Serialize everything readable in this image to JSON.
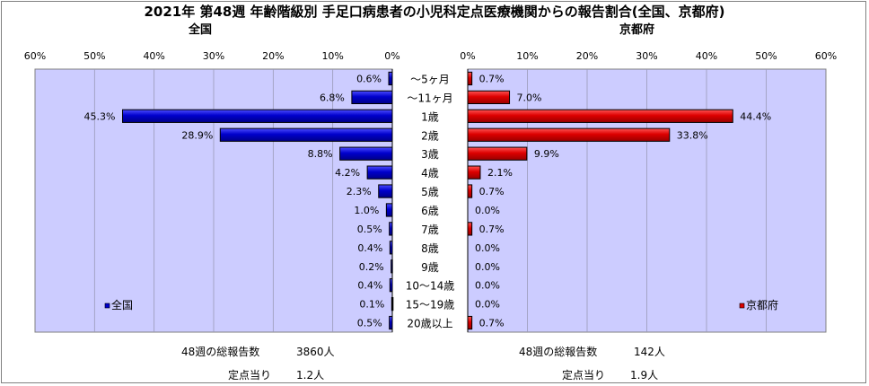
{
  "title": "2021年 第48週 年齢階級別 手足口病患者の小児科定点医療機関からの報告割合(全国、京都府)",
  "charts": {
    "left_title": "全国",
    "right_title": "京都府"
  },
  "colors": {
    "plot_bg": "#ccccff",
    "national_bar": "#0000cc",
    "kyoto_bar": "#dd0000",
    "grid": "#000000"
  },
  "chart_data": [
    {
      "type": "bar",
      "orientation": "horizontal",
      "direction": "right-to-left",
      "title": "全国",
      "categories": [
        "～5ヶ月",
        "～11ヶ月",
        "1歳",
        "2歳",
        "3歳",
        "4歳",
        "5歳",
        "6歳",
        "7歳",
        "8歳",
        "9歳",
        "10～14歳",
        "15～19歳",
        "20歳以上"
      ],
      "series": [
        {
          "name": "全国",
          "values": [
            0.6,
            6.8,
            45.3,
            28.9,
            8.8,
            4.2,
            2.3,
            1.0,
            0.5,
            0.4,
            0.2,
            0.4,
            0.1,
            0.5
          ],
          "labels": [
            "0.6%",
            "6.8%",
            "45.3%",
            "28.9%",
            "8.8%",
            "4.2%",
            "2.3%",
            "1.0%",
            "0.5%",
            "0.4%",
            "0.2%",
            "0.4%",
            "0.1%",
            "0.5%"
          ]
        }
      ],
      "xlim": [
        0,
        60
      ],
      "ticks": [
        "0%",
        "10%",
        "20%",
        "30%",
        "40%",
        "50%",
        "60%"
      ],
      "grid": true,
      "legend": "bottom-left"
    },
    {
      "type": "bar",
      "orientation": "horizontal",
      "direction": "left-to-right",
      "title": "京都府",
      "categories": [
        "～5ヶ月",
        "～11ヶ月",
        "1歳",
        "2歳",
        "3歳",
        "4歳",
        "5歳",
        "6歳",
        "7歳",
        "8歳",
        "9歳",
        "10～14歳",
        "15～19歳",
        "20歳以上"
      ],
      "series": [
        {
          "name": "京都府",
          "values": [
            0.7,
            7.0,
            44.4,
            33.8,
            9.9,
            2.1,
            0.7,
            0.0,
            0.7,
            0.0,
            0.0,
            0.0,
            0.0,
            0.7
          ],
          "labels": [
            "0.7%",
            "7.0%",
            "44.4%",
            "33.8%",
            "9.9%",
            "2.1%",
            "0.7%",
            "0.0%",
            "0.7%",
            "0.0%",
            "0.0%",
            "0.0%",
            "0.0%",
            "0.7%"
          ]
        }
      ],
      "xlim": [
        0,
        60
      ],
      "ticks": [
        "0%",
        "10%",
        "20%",
        "30%",
        "40%",
        "50%",
        "60%"
      ],
      "grid": true,
      "legend": "bottom-right"
    }
  ],
  "footer": {
    "national_total_label": "48週の総報告数",
    "national_total_value": "3860人",
    "national_per_label": "定点当り",
    "national_per_value": "1.2人",
    "kyoto_total_label": "48週の総報告数",
    "kyoto_total_value": "142人",
    "kyoto_per_label": "定点当り",
    "kyoto_per_value": "1.9人"
  }
}
